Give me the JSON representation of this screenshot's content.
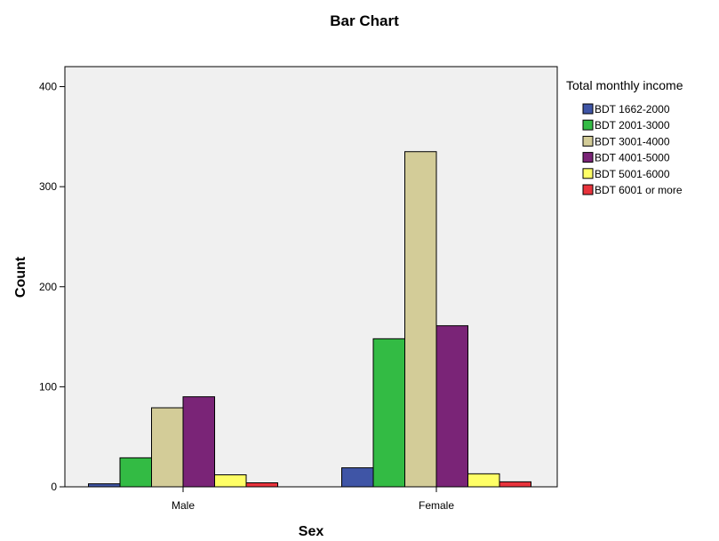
{
  "chart_data": {
    "type": "bar",
    "title": "Bar Chart",
    "xlabel": "Sex",
    "ylabel": "Count",
    "categories": [
      "Male",
      "Female"
    ],
    "ylim": [
      0,
      420
    ],
    "yticks": [
      0,
      100,
      200,
      300,
      400
    ],
    "grid": false,
    "legend": {
      "title": "Total monthly income",
      "position": "right"
    },
    "series": [
      {
        "name": "BDT 1662-2000",
        "color": "#3f55a6",
        "values": [
          3,
          19
        ]
      },
      {
        "name": "BDT 2001-3000",
        "color": "#33bb44",
        "values": [
          29,
          148
        ]
      },
      {
        "name": "BDT 3001-4000",
        "color": "#d3cc98",
        "values": [
          79,
          335
        ]
      },
      {
        "name": "BDT 4001-5000",
        "color": "#7a2477",
        "values": [
          90,
          161
        ]
      },
      {
        "name": "BDT 5001-6000",
        "color": "#ffff66",
        "values": [
          12,
          13
        ]
      },
      {
        "name": "BDT 6001 or more",
        "color": "#e8333c",
        "values": [
          4,
          5
        ]
      }
    ]
  }
}
